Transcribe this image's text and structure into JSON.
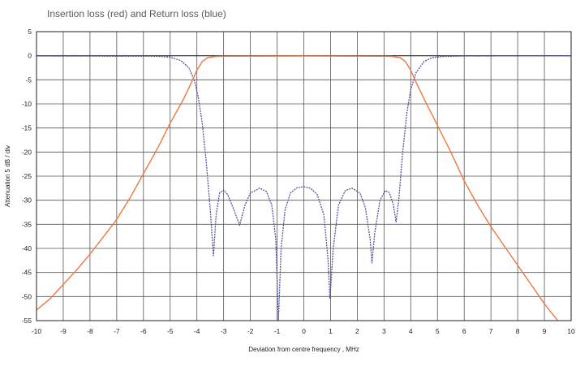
{
  "chart_data": {
    "type": "line",
    "title": "Insertion loss (red) and Return loss (blue)",
    "xlabel": "Deviation from centre frequency ,  MHz",
    "ylabel": "Attenuation  5 dB / div",
    "xlim": [
      -10,
      10
    ],
    "ylim": [
      -55,
      5
    ],
    "xticks": [
      -10,
      -9,
      -8,
      -7,
      -6,
      -5,
      -4,
      -3,
      -2,
      -1,
      0,
      1,
      2,
      3,
      4,
      5,
      6,
      7,
      8,
      9,
      10
    ],
    "yticks": [
      5,
      0,
      -5,
      -10,
      -15,
      -20,
      -25,
      -30,
      -35,
      -40,
      -45,
      -50,
      -55
    ],
    "grid": true,
    "legend": "none",
    "series": [
      {
        "name": "Insertion loss",
        "color": "#ee7744",
        "style": "solid",
        "points": [
          [
            -10,
            -52.8
          ],
          [
            -9.5,
            -50.5
          ],
          [
            -9,
            -47.5
          ],
          [
            -8.5,
            -44.5
          ],
          [
            -8,
            -41.2
          ],
          [
            -7.5,
            -37.6
          ],
          [
            -7,
            -34
          ],
          [
            -6.5,
            -29.5
          ],
          [
            -6,
            -24.5
          ],
          [
            -5.5,
            -19.5
          ],
          [
            -5,
            -14
          ],
          [
            -4.5,
            -9
          ],
          [
            -4.2,
            -5.5
          ],
          [
            -4,
            -3
          ],
          [
            -3.8,
            -1.2
          ],
          [
            -3.6,
            -0.4
          ],
          [
            -3.3,
            -0.15
          ],
          [
            -3,
            -0.1
          ],
          [
            0,
            -0.05
          ],
          [
            3,
            -0.1
          ],
          [
            3.3,
            -0.15
          ],
          [
            3.6,
            -0.4
          ],
          [
            3.8,
            -1.2
          ],
          [
            4,
            -3
          ],
          [
            4.2,
            -5.5
          ],
          [
            4.5,
            -9
          ],
          [
            5,
            -14.5
          ],
          [
            5.5,
            -20
          ],
          [
            6,
            -26
          ],
          [
            6.5,
            -31
          ],
          [
            7,
            -35.5
          ],
          [
            7.5,
            -39.5
          ],
          [
            8,
            -43.5
          ],
          [
            8.5,
            -47.5
          ],
          [
            9,
            -51.5
          ],
          [
            9.5,
            -55
          ]
        ]
      },
      {
        "name": "Return loss",
        "color": "#5050a0",
        "style": "dotted",
        "points": [
          [
            -10,
            -0.05
          ],
          [
            -5.5,
            -0.1
          ],
          [
            -5,
            -0.3
          ],
          [
            -4.6,
            -1
          ],
          [
            -4.3,
            -2.5
          ],
          [
            -4.1,
            -5
          ],
          [
            -3.95,
            -8.5
          ],
          [
            -3.8,
            -14
          ],
          [
            -3.65,
            -22
          ],
          [
            -3.5,
            -32
          ],
          [
            -3.38,
            -41.5
          ],
          [
            -3.28,
            -33
          ],
          [
            -3.15,
            -28.5
          ],
          [
            -3,
            -27.9
          ],
          [
            -2.85,
            -28.8
          ],
          [
            -2.65,
            -31.5
          ],
          [
            -2.4,
            -35.2
          ],
          [
            -2.2,
            -31
          ],
          [
            -2,
            -28.5
          ],
          [
            -1.65,
            -27.5
          ],
          [
            -1.4,
            -28.2
          ],
          [
            -1.2,
            -31
          ],
          [
            -1.05,
            -38
          ],
          [
            -0.95,
            -55
          ],
          [
            -0.85,
            -40
          ],
          [
            -0.7,
            -32
          ],
          [
            -0.5,
            -28.5
          ],
          [
            -0.25,
            -27.4
          ],
          [
            0,
            -27.2
          ],
          [
            0.25,
            -27.5
          ],
          [
            0.5,
            -28.8
          ],
          [
            0.75,
            -33
          ],
          [
            0.9,
            -42
          ],
          [
            0.98,
            -50.5
          ],
          [
            1.1,
            -40
          ],
          [
            1.3,
            -31
          ],
          [
            1.55,
            -28
          ],
          [
            1.8,
            -27.5
          ],
          [
            2.1,
            -28.5
          ],
          [
            2.3,
            -31.5
          ],
          [
            2.48,
            -38
          ],
          [
            2.55,
            -43
          ],
          [
            2.65,
            -37
          ],
          [
            2.85,
            -30
          ],
          [
            3.05,
            -28
          ],
          [
            3.2,
            -28.4
          ],
          [
            3.35,
            -31
          ],
          [
            3.45,
            -34.5
          ],
          [
            3.55,
            -30
          ],
          [
            3.7,
            -20
          ],
          [
            3.85,
            -12
          ],
          [
            4,
            -7
          ],
          [
            4.2,
            -3.5
          ],
          [
            4.5,
            -1.2
          ],
          [
            4.8,
            -0.4
          ],
          [
            5.2,
            -0.15
          ],
          [
            6,
            -0.05
          ],
          [
            10,
            0
          ]
        ]
      }
    ]
  }
}
